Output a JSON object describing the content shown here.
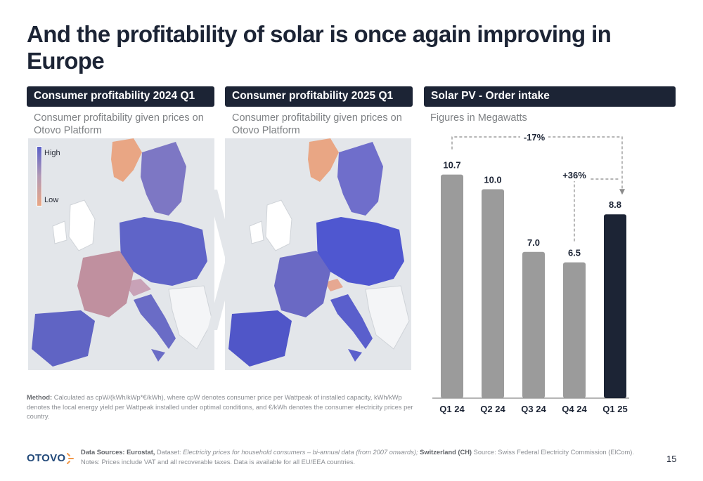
{
  "page": {
    "title": "And the profitability of solar is once again improving in Europe",
    "page_number": "15"
  },
  "panels": [
    {
      "header": "Consumer profitability 2024 Q1",
      "subtitle_line1": "Consumer profitability given prices on",
      "subtitle_line2": "Otovo Platform"
    },
    {
      "header": "Consumer profitability 2025 Q1",
      "subtitle_line1": "Consumer profitability given prices on",
      "subtitle_line2": "Otovo Platform"
    },
    {
      "header": "Solar PV - Order intake",
      "subtitle_line1": "Figures in Megawatts"
    }
  ],
  "legend": {
    "high": "High",
    "low": "Low"
  },
  "colors": {
    "dark_navy": "#1c2435",
    "bar_grey": "#9b9b9b",
    "high": "#5a60c8",
    "low": "#e9a684",
    "map_bg": "#e3e6ea"
  },
  "chart_data": {
    "type": "bar",
    "categories": [
      "Q1 24",
      "Q2 24",
      "Q3 24",
      "Q4 24",
      "Q1 25"
    ],
    "values": [
      10.7,
      10.0,
      7.0,
      6.5,
      8.8
    ],
    "value_labels": [
      "10.7",
      "10.0",
      "7.0",
      "6.5",
      "8.8"
    ],
    "highlight_index": 4,
    "unit": "Megawatts",
    "annotations": [
      {
        "label": "-17%",
        "from": "Q1 24",
        "to": "Q1 25"
      },
      {
        "label": "+36%",
        "from": "Q4 24",
        "to": "Q1 25"
      }
    ],
    "ylim": [
      0,
      12
    ]
  },
  "method": {
    "label": "Method:",
    "text": "Calculated as cpW/(kWh/kWp*€/kWh), where cpW denotes consumer price per Wattpeak of installed capacity, kWh/kWp denotes the local energy yield per Wattpeak installed under optimal conditions, and €/kWh denotes the consumer electricity prices per country."
  },
  "footer": {
    "logo": "OTOVO",
    "sources_label": "Data Sources: Eurostat,",
    "dataset_label": "Dataset:",
    "dataset_text": "Electricity prices for household consumers – bi-annual data (from 2007 onwards);",
    "switzerland_label": "Switzerland (CH)",
    "switzerland_text": "Source: Swiss Federal Electricity Commission (ElCom).",
    "notes": "Notes: Prices include VAT and all recoverable taxes. Data is available for all EU/EEA countries."
  }
}
